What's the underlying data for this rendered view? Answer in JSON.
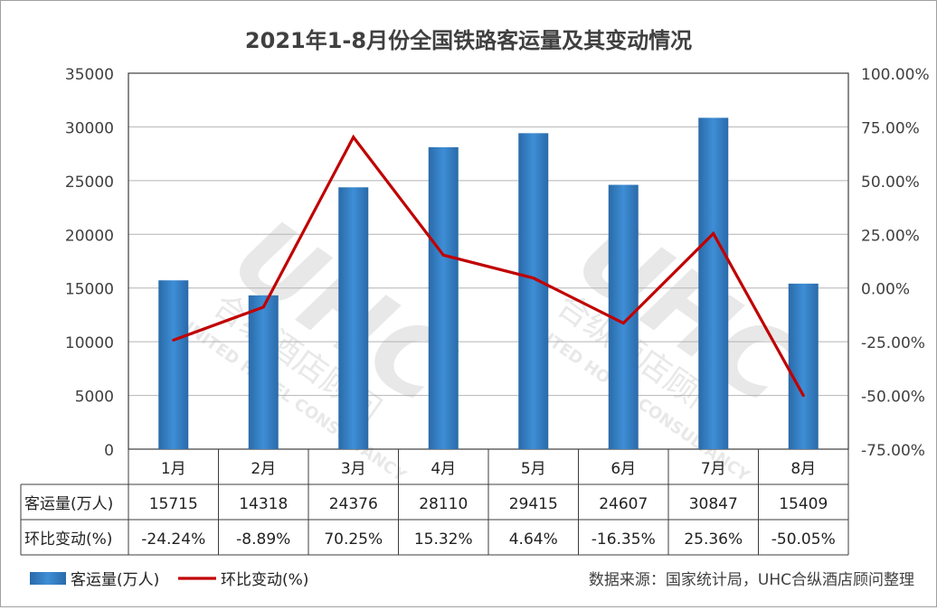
{
  "chart_data": {
    "type": "bar",
    "title": "2021年1-8月份全国铁路客运量及其变动情况",
    "categories": [
      "1月",
      "2月",
      "3月",
      "4月",
      "5月",
      "6月",
      "7月",
      "8月"
    ],
    "series": [
      {
        "name": "客运量(万人)",
        "type": "bar",
        "axis": "left",
        "color": "#2e75b6",
        "values": [
          15715,
          14318,
          24376,
          28110,
          29415,
          24607,
          30847,
          15409
        ]
      },
      {
        "name": "环比变动(%)",
        "type": "line",
        "axis": "right",
        "color": "#c00000",
        "values": [
          -24.24,
          -8.89,
          70.25,
          15.32,
          4.64,
          -16.35,
          25.36,
          -50.05
        ]
      }
    ],
    "y_left": {
      "min": 0,
      "max": 35000,
      "step": 5000,
      "ticks": [
        "35000",
        "30000",
        "25000",
        "20000",
        "15000",
        "10000",
        "5000",
        "0"
      ]
    },
    "y_right": {
      "min": -75,
      "max": 100,
      "step": 25,
      "ticks": [
        "100.00%",
        "75.00%",
        "50.00%",
        "25.00%",
        "0.00%",
        "-25.00%",
        "-50.00%",
        "-75.00%"
      ]
    },
    "grid": true,
    "legend_position": "bottom-left"
  },
  "data_table": {
    "row_labels": [
      "客运量(万人)",
      "环比变动(%)"
    ],
    "rows": [
      [
        "15715",
        "14318",
        "24376",
        "28110",
        "29415",
        "24607",
        "30847",
        "15409"
      ],
      [
        "-24.24%",
        "-8.89%",
        "70.25%",
        "15.32%",
        "4.64%",
        "-16.35%",
        "25.36%",
        "-50.05%"
      ]
    ]
  },
  "source": "数据来源：国家统计局，UHC合纵酒店顾问整理",
  "watermark": {
    "logo_text": "UHC",
    "cn_text": "合纵酒店顾问",
    "en_text": "UNITED HOTEL CONSULTANCY"
  }
}
